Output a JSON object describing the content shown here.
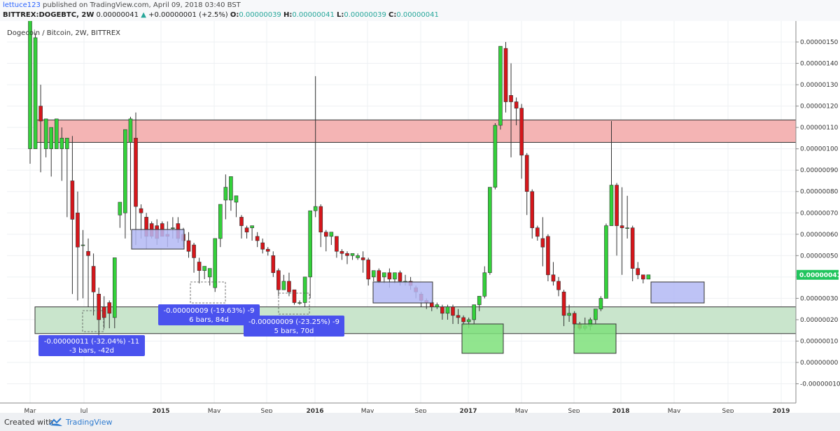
{
  "header": {
    "author": "lettuce123",
    "published": "published on TradingView.com, April 09, 2018 03:40 BST",
    "symbol": "BITTREX:DOGEBTC, 2W",
    "last": "0.00000041",
    "change": "+0.00000001 (+2.5%)",
    "o_label": "O:",
    "o": "0.00000039",
    "h_label": "H:",
    "h": "0.00000041",
    "l_label": "L:",
    "l": "0.00000039",
    "c_label": "C:",
    "c": "0.00000041"
  },
  "footer": {
    "created_with": "Created with",
    "brand": "TradingView"
  },
  "chart_data": {
    "type": "candlestick",
    "title": "Dogecoin / Bitcoin, 2W, BITTREX",
    "ylim": [
      -1e-07,
      1.57e-06
    ],
    "y_ticks": [
      "0.00000150",
      "0.00000140",
      "0.00000130",
      "0.00000120",
      "0.00000110",
      "0.00000100",
      "0.00000090",
      "0.00000080",
      "0.00000070",
      "0.00000060",
      "0.00000050",
      "0.00000040",
      "0.00000030",
      "0.00000020",
      "0.00000010",
      "0.00000000",
      "-0.00000010"
    ],
    "x_ticks": [
      "Mar",
      "Jul",
      "2015",
      "May",
      "Sep",
      "2016",
      "May",
      "Sep",
      "2017",
      "May",
      "Sep",
      "2018",
      "May",
      "Sep",
      "2019"
    ],
    "current_price": "0.00000041",
    "candles": [
      [
        1e-06,
        1.52e-06,
        1.66e-06,
        9.3e-07
      ],
      [
        1e-06,
        1.54e-06,
        1.52e-06,
        1.22e-06
      ],
      [
        1.2e-06,
        1.3e-06,
        1.13e-06,
        8.9e-07
      ],
      [
        1e-06,
        1.1e-06,
        1.14e-06,
        9.6e-07
      ],
      [
        1e-06,
        9.6e-07,
        1.1e-06,
        8.7e-07
      ],
      [
        1e-06,
        1.03e-06,
        1.14e-06,
        1.03e-06
      ],
      [
        1e-06,
        1.1e-06,
        1.05e-06,
        8.5e-07
      ],
      [
        1e-06,
        1.04e-06,
        1.05e-06,
        6.8e-07
      ],
      [
        8.5e-07,
        1.06e-06,
        6.7e-07,
        3.2e-07
      ],
      [
        7e-07,
        8e-07,
        5.4e-07,
        2.9e-07
      ],
      [
        5.5e-07,
        6.2e-07,
        5.5e-07,
        3e-07
      ],
      [
        5.2e-07,
        5.8e-07,
        5e-07,
        2.6e-07
      ],
      [
        4.5e-07,
        5.1e-07,
        3.3e-07,
        2.2e-07
      ],
      [
        3.2e-07,
        3.5e-07,
        2e-07,
        1e-07
      ],
      [
        2.6e-07,
        3.1e-07,
        2.1e-07,
        1.6e-07
      ],
      [
        2.8e-07,
        2.9e-07,
        2.3e-07,
        1.6e-07
      ],
      [
        2.1e-07,
        4e-07,
        4.9e-07,
        1.6e-07
      ],
      [
        6.9e-07,
        6.8e-07,
        7.5e-07,
        6.3e-07
      ],
      [
        7e-07,
        7.4e-07,
        1.09e-06,
        5.8e-07
      ],
      [
        1.03e-06,
        1.15e-06,
        1.14e-06,
        6.2e-07
      ],
      [
        1.05e-06,
        1.17e-06,
        7.3e-07,
        5.5e-07
      ],
      [
        7.2e-07,
        7.4e-07,
        7e-07,
        5.8e-07
      ],
      [
        6.8e-07,
        7e-07,
        5.9e-07,
        5.3e-07
      ],
      [
        6.5e-07,
        6.6e-07,
        5.9e-07,
        5.8e-07
      ],
      [
        6.4e-07,
        6.7e-07,
        5.8e-07,
        5.5e-07
      ],
      [
        6.5e-07,
        6.6e-07,
        5.9e-07,
        5.9e-07
      ],
      [
        6e-07,
        6.6e-07,
        5.9e-07,
        5.4e-07
      ],
      [
        6.3e-07,
        6.8e-07,
        6.3e-07,
        5.8e-07
      ],
      [
        6.5e-07,
        6.8e-07,
        5.8e-07,
        5.6e-07
      ],
      [
        6e-07,
        6.3e-07,
        5.7e-07,
        5.4e-07
      ],
      [
        5.7e-07,
        6.1e-07,
        5.2e-07,
        4.9e-07
      ],
      [
        5.5e-07,
        5.6e-07,
        4.9e-07,
        4.2e-07
      ],
      [
        4.7e-07,
        4.9e-07,
        4.3e-07,
        3.7e-07
      ],
      [
        4.3e-07,
        4.5e-07,
        4.5e-07,
        3.9e-07
      ],
      [
        4e-07,
        3.7e-07,
        4.4e-07,
        3.6e-07
      ],
      [
        3.5e-07,
        3.3e-07,
        5.8e-07,
        3.3e-07
      ],
      [
        5.8e-07,
        6.8e-07,
        7.4e-07,
        5.4e-07
      ],
      [
        7.6e-07,
        8.8e-07,
        8.2e-07,
        6.7e-07
      ],
      [
        7.6e-07,
        8.2e-07,
        8.7e-07,
        7.1e-07
      ],
      [
        7.5e-07,
        7.3e-07,
        7.8e-07,
        6.8e-07
      ],
      [
        6.8e-07,
        6.9e-07,
        6.4e-07,
        5.8e-07
      ],
      [
        6.3e-07,
        6.4e-07,
        6.1e-07,
        5.8e-07
      ],
      [
        6.3e-07,
        6e-07,
        6.4e-07,
        5.7e-07
      ],
      [
        5.9e-07,
        6.1e-07,
        5.7e-07,
        5.4e-07
      ],
      [
        5.6e-07,
        5.8e-07,
        5.3e-07,
        5.1e-07
      ],
      [
        5.3e-07,
        5.4e-07,
        5.2e-07,
        5e-07
      ],
      [
        5e-07,
        5.2e-07,
        4.2e-07,
        4e-07
      ],
      [
        4.3e-07,
        4.4e-07,
        3.4e-07,
        3.1e-07
      ],
      [
        3.4e-07,
        4.1e-07,
        3.8e-07,
        3.4e-07
      ],
      [
        3.8e-07,
        4.2e-07,
        3.3e-07,
        3.1e-07
      ],
      [
        3.4e-07,
        3.4e-07,
        2.8e-07,
        2.7e-07
      ],
      [
        2.8e-07,
        2.9e-07,
        2.8e-07,
        2.7e-07
      ],
      [
        2.8e-07,
        2.8e-07,
        4e-07,
        2.6e-07
      ],
      [
        4e-07,
        4.7e-07,
        7.1e-07,
        3e-07
      ],
      [
        7.1e-07,
        1.34e-06,
        7.3e-07,
        6.8e-07
      ],
      [
        7.3e-07,
        7.4e-07,
        6.1e-07,
        5.4e-07
      ],
      [
        6.1e-07,
        6.2e-07,
        5.9e-07,
        5.2e-07
      ],
      [
        5.9e-07,
        5.8e-07,
        6.1e-07,
        5.5e-07
      ],
      [
        5.9e-07,
        5.9e-07,
        5.2e-07,
        4.9e-07
      ],
      [
        5.2e-07,
        5.3e-07,
        5.1e-07,
        4.8e-07
      ],
      [
        5.1e-07,
        5.2e-07,
        5e-07,
        4.6e-07
      ],
      [
        5e-07,
        5e-07,
        5.1e-07,
        4.8e-07
      ],
      [
        4.9e-07,
        5.1e-07,
        5e-07,
        4.8e-07
      ],
      [
        4.9e-07,
        5.2e-07,
        4.8e-07,
        4.2e-07
      ],
      [
        4.8e-07,
        4.9e-07,
        3.9e-07,
        3.6e-07
      ],
      [
        4e-07,
        4.2e-07,
        4.3e-07,
        3.8e-07
      ],
      [
        4.3e-07,
        4.4e-07,
        3.8e-07,
        3.7e-07
      ],
      [
        4e-07,
        4.1e-07,
        4.2e-07,
        3.7e-07
      ],
      [
        4.2e-07,
        4.4e-07,
        3.9e-07,
        3.5e-07
      ],
      [
        3.9e-07,
        4.1e-07,
        4.2e-07,
        3.7e-07
      ],
      [
        4.2e-07,
        4.3e-07,
        3.8e-07,
        3.6e-07
      ],
      [
        3.8e-07,
        4.1e-07,
        3.8e-07,
        3.6e-07
      ],
      [
        3.8e-07,
        4e-07,
        3.6e-07,
        3.4e-07
      ],
      [
        3.5e-07,
        3.6e-07,
        3.3e-07,
        3e-07
      ],
      [
        3.2e-07,
        3.3e-07,
        2.9e-07,
        2.6e-07
      ],
      [
        2.9e-07,
        3e-07,
        2.8e-07,
        2.5e-07
      ],
      [
        2.8e-07,
        2.9e-07,
        2.6e-07,
        2.4e-07
      ],
      [
        2.6e-07,
        2.8e-07,
        2.7e-07,
        2.5e-07
      ],
      [
        2.6e-07,
        2.7e-07,
        2.3e-07,
        2e-07
      ],
      [
        2.3e-07,
        2.7e-07,
        2.6e-07,
        2e-07
      ],
      [
        2.6e-07,
        2.7e-07,
        2.2e-07,
        1.8e-07
      ],
      [
        2.2e-07,
        2.5e-07,
        2.1e-07,
        1.8e-07
      ],
      [
        2.1e-07,
        2.2e-07,
        1.9e-07,
        1.7e-07
      ],
      [
        1.9e-07,
        2.1e-07,
        2e-07,
        1.6e-07
      ],
      [
        2e-07,
        2.7e-07,
        2.7e-07,
        1.8e-07
      ],
      [
        2.7e-07,
        3.1e-07,
        3.1e-07,
        2.4e-07
      ],
      [
        3.1e-07,
        4.5e-07,
        4.2e-07,
        3e-07
      ],
      [
        4.2e-07,
        8.2e-07,
        8.2e-07,
        4.1e-07
      ],
      [
        8.2e-07,
        1.12e-06,
        1.11e-06,
        8.1e-07
      ],
      [
        1.11e-06,
        1.48e-06,
        1.48e-06,
        1.09e-06
      ],
      [
        1.47e-06,
        1.5e-06,
        1.22e-06,
        1.17e-06
      ],
      [
        1.25e-06,
        1.4e-06,
        1.22e-06,
        9.6e-07
      ],
      [
        1.22e-06,
        1.24e-06,
        1.19e-06,
        1.11e-06
      ],
      [
        1.19e-06,
        1.21e-06,
        9.7e-07,
        8.6e-07
      ],
      [
        9.7e-07,
        9.8e-07,
        8e-07,
        6.9e-07
      ],
      [
        8e-07,
        8.1e-07,
        6.3e-07,
        5.8e-07
      ],
      [
        6.3e-07,
        6.4e-07,
        5.9e-07,
        5.7e-07
      ],
      [
        5.8e-07,
        6.8e-07,
        5.4e-07,
        4.5e-07
      ],
      [
        5.9e-07,
        6e-07,
        4.1e-07,
        3.8e-07
      ],
      [
        4.1e-07,
        4.7e-07,
        3.8e-07,
        3.6e-07
      ],
      [
        3.8e-07,
        4e-07,
        3.4e-07,
        3.1e-07
      ],
      [
        3.3e-07,
        3.4e-07,
        2.2e-07,
        1.7e-07
      ],
      [
        2.2e-07,
        2.7e-07,
        2.3e-07,
        1.9e-07
      ],
      [
        2.3e-07,
        2.4e-07,
        1.8e-07,
        1.6e-07
      ],
      [
        1.8e-07,
        1.9e-07,
        1.6e-07,
        1.5e-07
      ],
      [
        1.6e-07,
        2.1e-07,
        1.7e-07,
        1.5e-07
      ],
      [
        1.7e-07,
        2.1e-07,
        2e-07,
        1.5e-07
      ],
      [
        2e-07,
        2.5e-07,
        2.5e-07,
        1.8e-07
      ],
      [
        2.5e-07,
        3.1e-07,
        3e-07,
        2.4e-07
      ],
      [
        3e-07,
        6.5e-07,
        6.4e-07,
        3e-07
      ],
      [
        6.4e-07,
        1.13e-06,
        8.3e-07,
        6.4e-07
      ],
      [
        8.3e-07,
        8.4e-07,
        6.4e-07,
        5e-07
      ],
      [
        6.4e-07,
        8.2e-07,
        6.3e-07,
        4.1e-07
      ],
      [
        6.3e-07,
        7.8e-07,
        6.3e-07,
        5.8e-07
      ],
      [
        6.3e-07,
        6.4e-07,
        4.4e-07,
        3.8e-07
      ],
      [
        4.4e-07,
        4.7e-07,
        4.1e-07,
        3.9e-07
      ],
      [
        4.1e-07,
        4.1e-07,
        3.9e-07,
        3.7e-07
      ],
      [
        3.9e-07,
        4.1e-07,
        4.1e-07,
        3.9e-07
      ]
    ],
    "zones": [
      {
        "kind": "resistance",
        "color": "#f4b4b4",
        "y_top": 1.135e-06,
        "y_bottom": 1.03e-06
      },
      {
        "kind": "support",
        "color": "#c9e5cc",
        "y_top": 2.6e-07,
        "y_bottom": 1.35e-07
      }
    ],
    "measure_labels": [
      {
        "line1": "-0.00000011 (-32.04%) -11",
        "line2": "-3 bars, -42d"
      },
      {
        "line1": "-0.00000009 (-19.63%) -9",
        "line2": "6 bars, 84d"
      },
      {
        "line1": "-0.00000009 (-23.25%) -9",
        "line2": "5 bars, 70d"
      }
    ]
  }
}
